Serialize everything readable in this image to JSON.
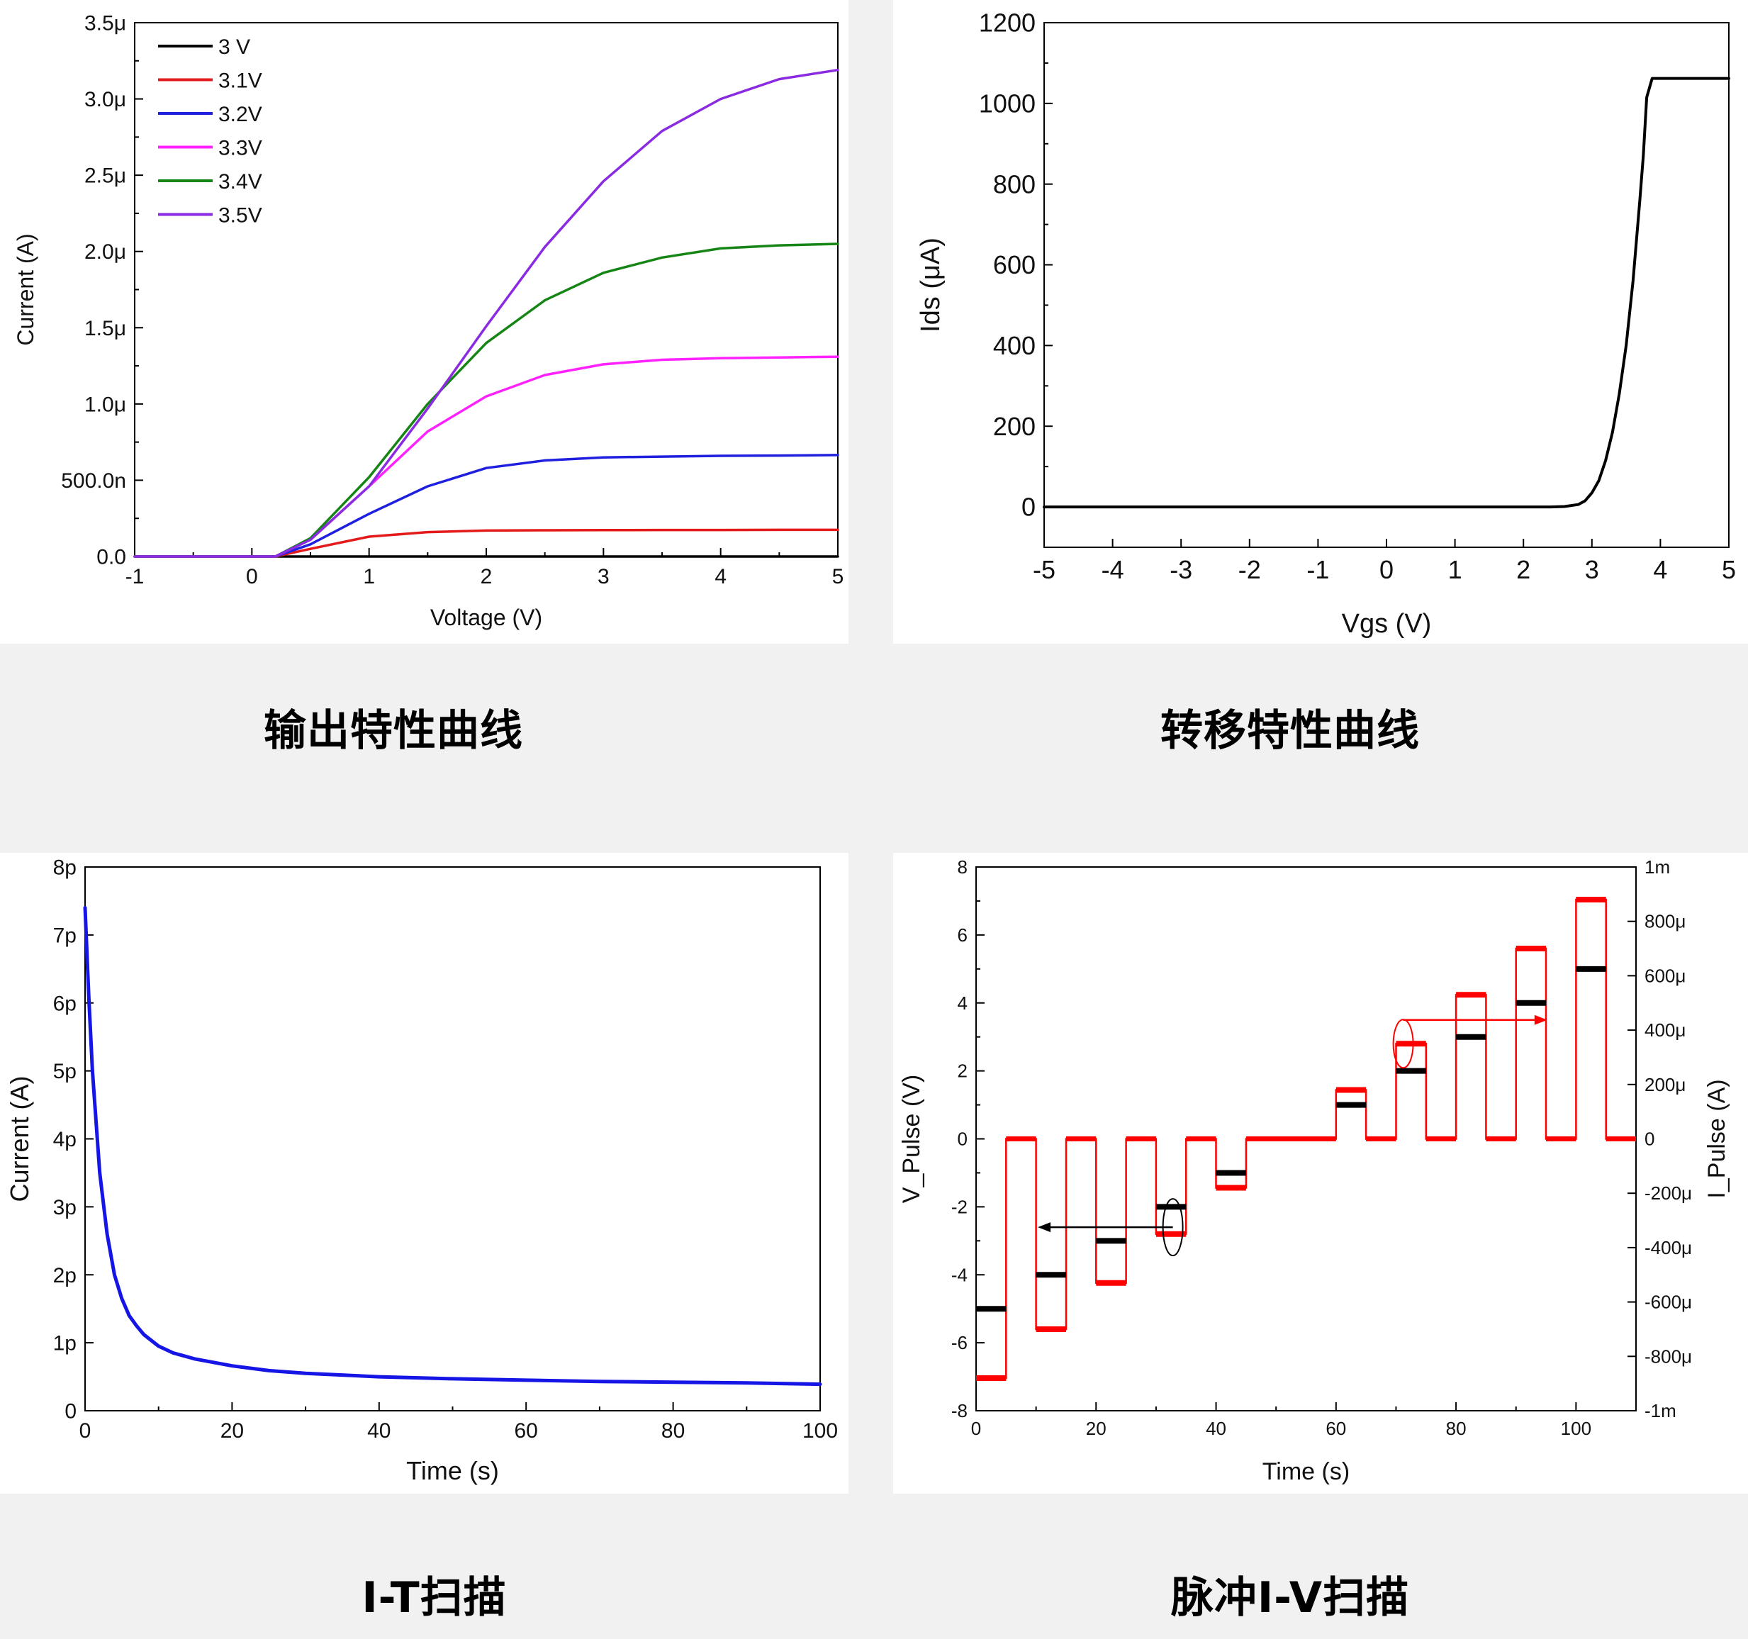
{
  "captions": {
    "output": "输出特性曲线",
    "transfer": "转移特性曲线",
    "it_scan": "I-T扫描",
    "pulse_iv": "脉冲I-V扫描"
  },
  "chart_data": [
    {
      "id": "output",
      "type": "line",
      "xlabel": "Voltage (V)",
      "ylabel": "Current (A)",
      "xlim": [
        -1,
        5
      ],
      "ylim": [
        0,
        3.5e-06
      ],
      "x_ticks": [
        -1,
        0,
        1,
        2,
        3,
        4,
        5
      ],
      "x_tick_labels": [
        "-1",
        "0",
        "1",
        "2",
        "3",
        "4",
        "5"
      ],
      "y_ticks": [
        0,
        5e-07,
        1e-06,
        1.5e-06,
        2e-06,
        2.5e-06,
        3e-06,
        3.5e-06
      ],
      "y_tick_labels": [
        "0.0",
        "500.0n",
        "1.0μ",
        "1.5μ",
        "2.0μ",
        "2.5μ",
        "3.0μ",
        "3.5μ"
      ],
      "legend_position": "top-left",
      "grid": false,
      "x": [
        -1,
        0,
        0.2,
        0.5,
        1,
        1.5,
        2,
        2.5,
        3,
        3.5,
        4,
        4.5,
        5
      ],
      "series": [
        {
          "name": "3 V",
          "color": "#000000",
          "values": [
            0,
            0,
            0,
            0,
            0,
            0,
            0,
            0,
            0,
            0,
            0,
            0,
            0
          ]
        },
        {
          "name": "3.1V",
          "color": "#e41a1a",
          "values": [
            0,
            0,
            0,
            5e-08,
            1.3e-07,
            1.6e-07,
            1.7e-07,
            1.72e-07,
            1.73e-07,
            1.74e-07,
            1.74e-07,
            1.75e-07,
            1.75e-07
          ]
        },
        {
          "name": "3.2V",
          "color": "#1f1fe0",
          "values": [
            0,
            0,
            0,
            8e-08,
            2.8e-07,
            4.6e-07,
            5.8e-07,
            6.3e-07,
            6.5e-07,
            6.55e-07,
            6.6e-07,
            6.62e-07,
            6.65e-07
          ]
        },
        {
          "name": "3.3V",
          "color": "#ff22ff",
          "values": [
            0,
            0,
            0,
            1.1e-07,
            4.6e-07,
            8.2e-07,
            1.05e-06,
            1.19e-06,
            1.26e-06,
            1.29e-06,
            1.3e-06,
            1.305e-06,
            1.31e-06
          ]
        },
        {
          "name": "3.4V",
          "color": "#158515",
          "values": [
            0,
            0,
            0,
            1.2e-07,
            5.2e-07,
            1e-06,
            1.4e-06,
            1.68e-06,
            1.86e-06,
            1.96e-06,
            2.02e-06,
            2.04e-06,
            2.05e-06
          ]
        },
        {
          "name": "3.5V",
          "color": "#8a2be2",
          "values": [
            0,
            0,
            0,
            1.1e-07,
            4.6e-07,
            9.7e-07,
            1.51e-06,
            2.03e-06,
            2.46e-06,
            2.79e-06,
            3e-06,
            3.13e-06,
            3.19e-06
          ]
        }
      ]
    },
    {
      "id": "transfer",
      "type": "line",
      "xlabel": "Vgs (V)",
      "ylabel": "Ids (μA)",
      "xlim": [
        -5,
        5
      ],
      "ylim": [
        -100,
        1200
      ],
      "x_ticks": [
        -5,
        -4,
        -3,
        -2,
        -1,
        0,
        1,
        2,
        3,
        4,
        5
      ],
      "x_tick_labels": [
        "-5",
        "-4",
        "-3",
        "-2",
        "-1",
        "0",
        "1",
        "2",
        "3",
        "4",
        "5"
      ],
      "y_ticks": [
        0,
        200,
        400,
        600,
        800,
        1000,
        1200
      ],
      "y_tick_labels": [
        "0",
        "200",
        "400",
        "600",
        "800",
        "1000",
        "1200"
      ],
      "grid": false,
      "series": [
        {
          "color": "#000000",
          "x": [
            -5,
            2.4,
            2.6,
            2.8,
            2.9,
            3.0,
            3.1,
            3.2,
            3.3,
            3.4,
            3.5,
            3.6,
            3.7,
            3.75,
            3.8,
            3.88,
            4.0,
            5
          ],
          "values": [
            0,
            0,
            1,
            6,
            15,
            35,
            65,
            115,
            185,
            280,
            400,
            560,
            760,
            870,
            1015,
            1062,
            1062,
            1062
          ]
        }
      ]
    },
    {
      "id": "it_scan",
      "type": "line",
      "xlabel": "Time (s)",
      "ylabel": "Current (A)",
      "xlim": [
        0,
        100
      ],
      "ylim": [
        0,
        8e-12
      ],
      "x_ticks": [
        0,
        20,
        40,
        60,
        80,
        100
      ],
      "x_tick_labels": [
        "0",
        "20",
        "40",
        "60",
        "80",
        "100"
      ],
      "y_ticks": [
        0,
        1e-12,
        2e-12,
        3e-12,
        4e-12,
        5e-12,
        6e-12,
        7e-12,
        8e-12
      ],
      "y_tick_labels": [
        "0",
        "1p",
        "2p",
        "3p",
        "4p",
        "5p",
        "6p",
        "7p",
        "8p"
      ],
      "grid": false,
      "series": [
        {
          "color": "#1515e6",
          "x": [
            0,
            0.5,
            1,
            2,
            3,
            4,
            5,
            6,
            7,
            8,
            10,
            12,
            15,
            20,
            25,
            30,
            40,
            50,
            60,
            70,
            80,
            90,
            100
          ],
          "values": [
            7.4e-12,
            6.1e-12,
            5e-12,
            3.5e-12,
            2.6e-12,
            2e-12,
            1.65e-12,
            1.4e-12,
            1.25e-12,
            1.12e-12,
            9.5e-13,
            8.5e-13,
            7.6e-13,
            6.6e-13,
            5.9e-13,
            5.5e-13,
            5e-13,
            4.7e-13,
            4.5e-13,
            4.3e-13,
            4.2e-13,
            4.1e-13,
            3.9e-13
          ]
        }
      ]
    },
    {
      "id": "pulse_iv",
      "type": "line",
      "xlabel": "Time (s)",
      "ylabel": "V_Pulse (V)",
      "y2label": "I_Pulse (A)",
      "xlim": [
        0,
        110
      ],
      "ylim": [
        -8,
        8
      ],
      "y2lim": [
        -0.001,
        0.001
      ],
      "x_ticks": [
        0,
        20,
        40,
        60,
        80,
        100
      ],
      "x_tick_labels": [
        "0",
        "20",
        "40",
        "60",
        "80",
        "100"
      ],
      "y_ticks": [
        -8,
        -6,
        -4,
        -2,
        0,
        2,
        4,
        6,
        8
      ],
      "y_tick_labels": [
        "-8",
        "-6",
        "-4",
        "-2",
        "0",
        "2",
        "4",
        "6",
        "8"
      ],
      "y2_ticks": [
        -0.001,
        -0.0008,
        -0.0006,
        -0.0004,
        -0.0002,
        0,
        0.0002,
        0.0004,
        0.0006,
        0.0008,
        0.001
      ],
      "y2_tick_labels": [
        "-1m",
        "-800μ",
        "-600μ",
        "-400μ",
        "-200μ",
        "0",
        "200μ",
        "400μ",
        "600μ",
        "800μ",
        "1m"
      ],
      "grid": false,
      "series": [
        {
          "axis": "right",
          "color": "#ff0000",
          "kind": "pulse",
          "pulse_starts": [
            0,
            10,
            20,
            30,
            40,
            60,
            70,
            80,
            90,
            100
          ],
          "pulse_width": 5,
          "values": [
            -0.00088,
            -0.0007,
            -0.00053,
            -0.00035,
            -0.00018,
            0.00018,
            0.00035,
            0.00053,
            0.0007,
            0.00088
          ]
        },
        {
          "axis": "left",
          "color": "#000000",
          "kind": "level",
          "pulse_starts": [
            0,
            10,
            20,
            30,
            40,
            60,
            70,
            80,
            90,
            100
          ],
          "pulse_width": 5,
          "values": [
            -5,
            -4,
            -3,
            -2,
            -1,
            1,
            2,
            3,
            4,
            5
          ]
        }
      ]
    }
  ]
}
